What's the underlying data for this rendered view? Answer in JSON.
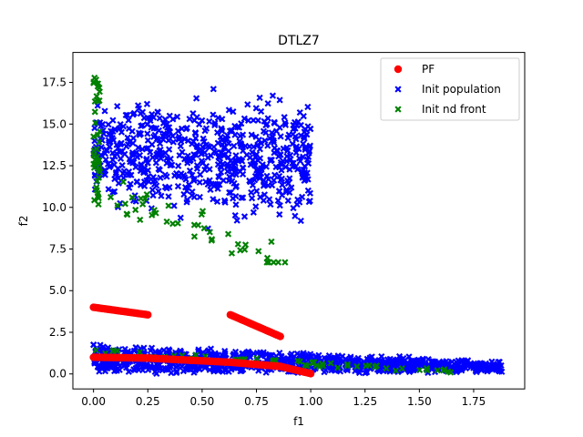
{
  "chart_data": {
    "type": "scatter",
    "title": "DTLZ7",
    "xlabel": "f1",
    "ylabel": "f2",
    "xlim": [
      -0.095,
      1.985
    ],
    "ylim": [
      -0.9,
      19.3
    ],
    "xticks": [
      0.0,
      0.25,
      0.5,
      0.75,
      1.0,
      1.25,
      1.5,
      1.75
    ],
    "xtick_labels": [
      "0.00",
      "0.25",
      "0.50",
      "0.75",
      "1.00",
      "1.25",
      "1.50",
      "1.75"
    ],
    "yticks": [
      0.0,
      2.5,
      5.0,
      7.5,
      10.0,
      12.5,
      15.0,
      17.5
    ],
    "ytick_labels": [
      "0.0",
      "2.5",
      "5.0",
      "7.5",
      "10.0",
      "12.5",
      "15.0",
      "17.5"
    ],
    "legend_position": "top-right",
    "series": [
      {
        "name": "PF",
        "marker": "circle",
        "color": "#ff0000",
        "segments": [
          {
            "x_from": 0.0,
            "x_to": 0.25,
            "y_from": 4.0,
            "y_to": 3.55
          },
          {
            "x_from": 0.63,
            "x_to": 0.86,
            "y_from": 3.55,
            "y_to": 2.25
          },
          {
            "x_from": 0.0,
            "x_to": 0.25,
            "y_from": 1.0,
            "y_to": 0.95
          },
          {
            "x_from": 0.25,
            "x_to": 0.63,
            "y_from": 0.95,
            "y_to": 0.7
          },
          {
            "x_from": 0.63,
            "x_to": 0.86,
            "y_from": 0.7,
            "y_to": 0.45
          },
          {
            "x_from": 0.86,
            "x_to": 1.0,
            "y_from": 0.45,
            "y_to": 0.02
          }
        ]
      },
      {
        "name": "Init population",
        "marker": "x-filled",
        "color": "#0000ff",
        "clusters": [
          {
            "x_range": [
              0.0,
              1.0
            ],
            "y_range": [
              7.9,
              18.7
            ]
          },
          {
            "x_range": [
              0.0,
              1.9
            ],
            "y_range": [
              0.0,
              1.8
            ]
          }
        ]
      },
      {
        "name": "Init nd front",
        "marker": "x-filled",
        "color": "#008000",
        "clusters": [
          {
            "x_range": [
              0.0,
              0.9
            ],
            "y_range": [
              6.7,
              18.3
            ]
          },
          {
            "x_range": [
              0.0,
              1.65
            ],
            "y_range": [
              0.0,
              1.5
            ]
          }
        ]
      }
    ]
  }
}
